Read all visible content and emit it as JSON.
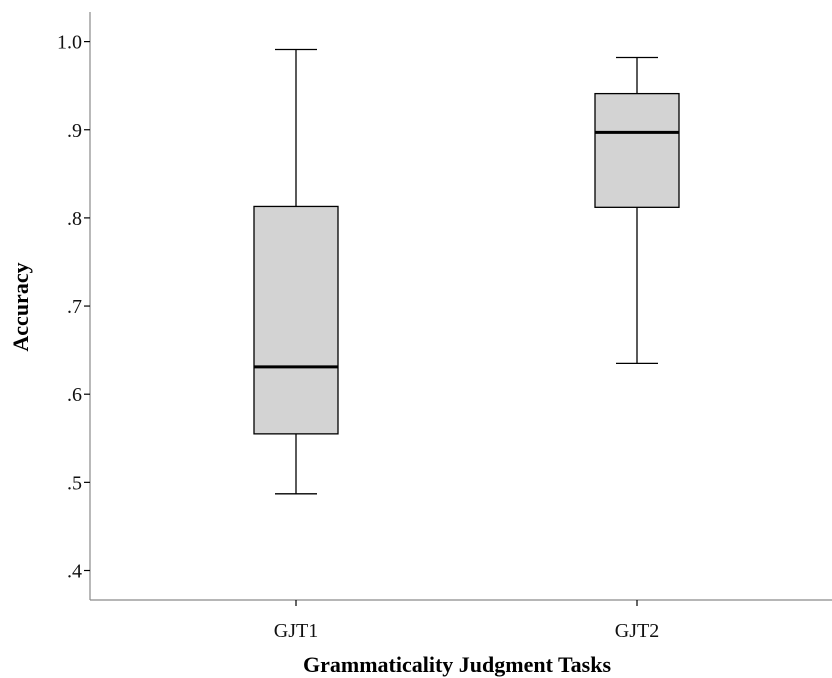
{
  "chart_data": {
    "type": "box",
    "categories": [
      "GJT1",
      "GJT2"
    ],
    "series": [
      {
        "category": "GJT1",
        "min": 0.487,
        "q1": 0.555,
        "median": 0.631,
        "q3": 0.813,
        "max": 0.991
      },
      {
        "category": "GJT2",
        "min": 0.635,
        "q1": 0.812,
        "median": 0.897,
        "q3": 0.941,
        "max": 0.982
      }
    ],
    "xlabel": "Grammaticality Judgment Tasks",
    "ylabel": "Accuracy",
    "yticks": [
      0.4,
      0.5,
      0.6,
      0.7,
      0.8,
      0.9,
      1.0
    ],
    "ytick_labels": [
      ".4",
      ".5",
      ".6",
      ".7",
      ".8",
      ".9",
      "1.0"
    ],
    "ylim": [
      0.375,
      1.33
    ],
    "grid": false,
    "box_color": "#d3d3d3",
    "line_color": "#000000",
    "axis_color": "#8a8a8a"
  }
}
